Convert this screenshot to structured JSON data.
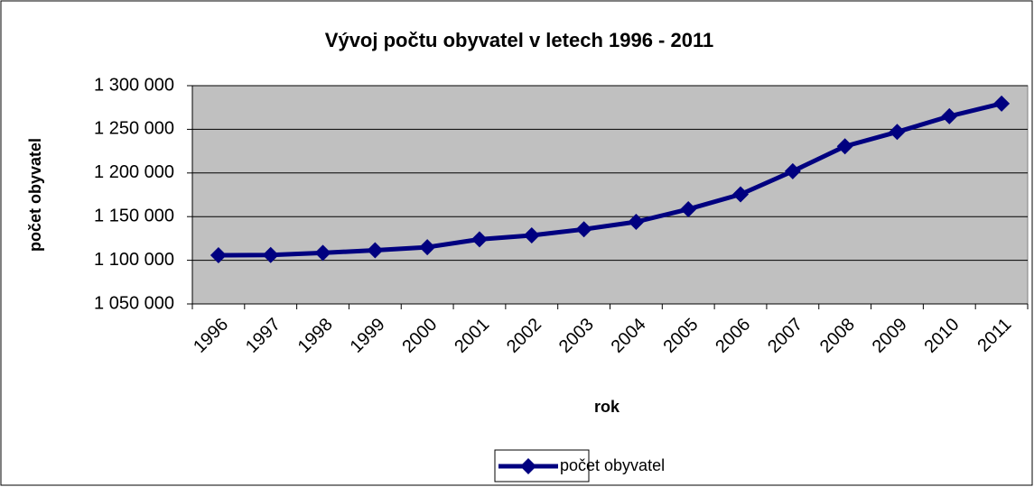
{
  "chart_data": {
    "type": "line",
    "title": "Vývoj počtu obyvatel v letech 1996 - 2011",
    "x_label": "rok",
    "y_label": "počet obyvatel",
    "categories": [
      "1996",
      "1997",
      "1998",
      "1999",
      "2000",
      "2001",
      "2002",
      "2003",
      "2004",
      "2005",
      "2006",
      "2007",
      "2008",
      "2009",
      "2010",
      "2011"
    ],
    "series": [
      {
        "name": "počet obyvatel",
        "color": "#000080",
        "values": [
          1105800,
          1106000,
          1108500,
          1111500,
          1115000,
          1124000,
          1128500,
          1135500,
          1144000,
          1158500,
          1175500,
          1202000,
          1230500,
          1247000,
          1265000,
          1279500
        ]
      }
    ],
    "ylim": [
      1050000,
      1300000
    ],
    "yticks": [
      {
        "value": 1050000,
        "label": "1 050 000"
      },
      {
        "value": 1100000,
        "label": "1 100 000"
      },
      {
        "value": 1150000,
        "label": "1 150 000"
      },
      {
        "value": 1200000,
        "label": "1 200 000"
      },
      {
        "value": 1250000,
        "label": "1 250 000"
      },
      {
        "value": 1300000,
        "label": "1 300 000"
      }
    ],
    "grid": true,
    "legend": "bottom"
  }
}
